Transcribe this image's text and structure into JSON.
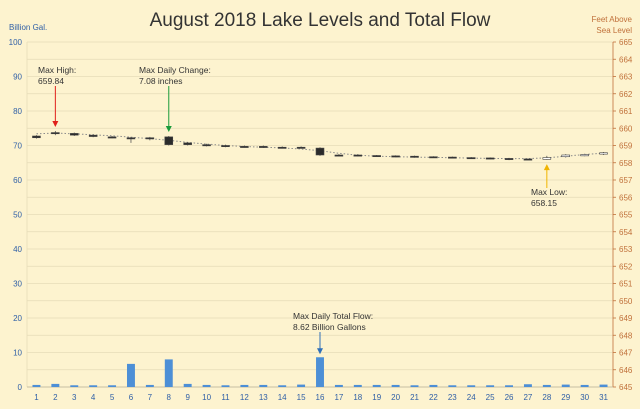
{
  "chart_data": {
    "type": "bar",
    "title": "August 2018 Lake Levels and Total Flow",
    "left_axis_label": "Billion Gal.",
    "right_axis_label_line1": "Feet Above",
    "right_axis_label_line2": "Sea Level",
    "left_ylim": [
      0,
      100
    ],
    "left_ticks": [
      0,
      10,
      20,
      30,
      40,
      50,
      60,
      70,
      80,
      90,
      100
    ],
    "right_ylim": [
      645,
      665
    ],
    "right_ticks": [
      645,
      646,
      647,
      648,
      649,
      650,
      651,
      652,
      653,
      654,
      655,
      656,
      657,
      658,
      659,
      660,
      661,
      662,
      663,
      664,
      665
    ],
    "grid": true,
    "categories": [
      "1",
      "2",
      "3",
      "4",
      "5",
      "6",
      "7",
      "8",
      "9",
      "10",
      "11",
      "12",
      "13",
      "14",
      "15",
      "16",
      "17",
      "18",
      "19",
      "20",
      "21",
      "22",
      "23",
      "24",
      "25",
      "26",
      "27",
      "28",
      "29",
      "30",
      "31"
    ],
    "series": [
      {
        "kind": "bar",
        "axis": "left",
        "values": [
          0.6,
          0.9,
          0.5,
          0.5,
          0.5,
          6.7,
          0.6,
          8.0,
          0.9,
          0.6,
          0.5,
          0.6,
          0.6,
          0.5,
          0.7,
          8.62,
          0.6,
          0.6,
          0.6,
          0.6,
          0.5,
          0.6,
          0.5,
          0.5,
          0.5,
          0.5,
          0.8,
          0.6,
          0.7,
          0.6,
          0.7
        ]
      },
      {
        "kind": "candlestick",
        "axis": "right",
        "open": [
          659.55,
          659.75,
          659.7,
          659.6,
          659.5,
          659.45,
          659.45,
          659.5,
          659.15,
          659.05,
          659.0,
          658.95,
          658.95,
          658.9,
          658.9,
          658.85,
          658.45,
          658.45,
          658.42,
          658.4,
          658.38,
          658.35,
          658.33,
          658.3,
          658.28,
          658.25,
          658.22,
          658.2,
          658.35,
          658.4,
          658.5
        ],
        "close": [
          659.45,
          659.7,
          659.6,
          659.52,
          659.46,
          659.4,
          659.4,
          659.05,
          659.05,
          658.98,
          658.94,
          658.92,
          658.9,
          658.88,
          658.86,
          658.45,
          658.42,
          658.4,
          658.38,
          658.36,
          658.34,
          658.31,
          658.28,
          658.26,
          658.24,
          658.21,
          658.18,
          658.3,
          658.45,
          658.48,
          658.58
        ],
        "high": [
          659.6,
          659.84,
          659.75,
          659.65,
          659.55,
          659.5,
          659.5,
          659.55,
          659.2,
          659.1,
          659.05,
          659.0,
          659.0,
          658.95,
          658.95,
          658.9,
          658.5,
          658.5,
          658.45,
          658.43,
          658.41,
          658.38,
          658.36,
          658.33,
          658.31,
          658.28,
          658.25,
          658.4,
          658.5,
          658.52,
          658.62
        ],
        "low": [
          659.4,
          659.6,
          659.55,
          659.48,
          659.42,
          659.15,
          659.3,
          659.0,
          659.0,
          658.95,
          658.9,
          658.88,
          658.86,
          658.84,
          658.82,
          658.4,
          658.38,
          658.36,
          658.34,
          658.32,
          658.3,
          658.28,
          658.25,
          658.22,
          658.2,
          658.15,
          658.15,
          658.18,
          658.3,
          658.38,
          658.45
        ],
        "trend": [
          659.68,
          659.72,
          659.68,
          659.62,
          659.56,
          659.48,
          659.4,
          659.3,
          659.18,
          659.08,
          659.0,
          658.94,
          658.9,
          658.86,
          658.8,
          658.7,
          658.55,
          658.44,
          658.38,
          658.35,
          658.33,
          658.31,
          658.29,
          658.27,
          658.25,
          658.24,
          658.24,
          658.28,
          658.38,
          658.48,
          658.56
        ]
      }
    ],
    "annotations": [
      {
        "lines": [
          "Max High:",
          "659.84"
        ],
        "day": 2,
        "value": 659.84,
        "axis": "right",
        "arrow_color": "#e0201b"
      },
      {
        "lines": [
          "Max Daily Change:",
          "7.08 inches"
        ],
        "day": 8,
        "value": 659.55,
        "axis": "right",
        "arrow_color": "#1a9b3a"
      },
      {
        "lines": [
          "Max Low:",
          "658.15"
        ],
        "day": 28,
        "value": 658.15,
        "axis": "right",
        "arrow_color": "#f0b400"
      },
      {
        "lines": [
          "Max Daily Total Flow:",
          "8.62 Billion Gallons"
        ],
        "day": 16,
        "value": 8.62,
        "axis": "left",
        "arrow_color": "#2f6fb8"
      }
    ],
    "colors": {
      "background": "#fdf3cf",
      "grid": "#e6dcb8",
      "left_axis": "#2f5fa6",
      "right_axis": "#c0703a",
      "bar": "#4d8fd6",
      "candle_up": "#ffffff",
      "candle_down": "#2b2b2b",
      "trend": "#8a8a8a",
      "text": "#333333"
    }
  }
}
